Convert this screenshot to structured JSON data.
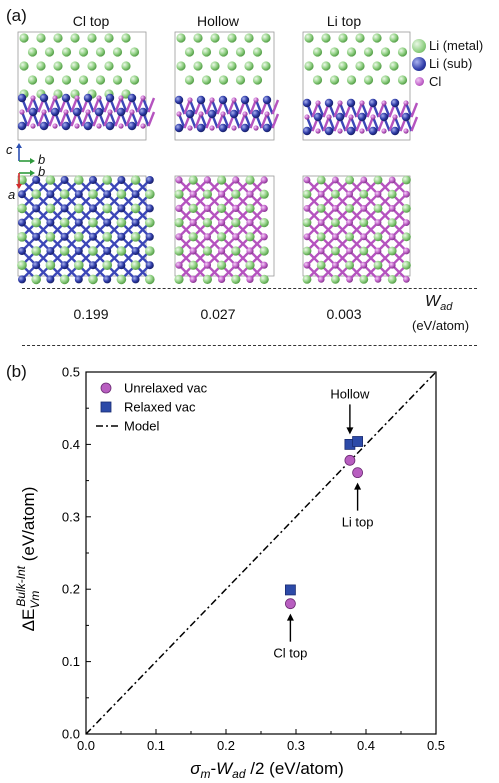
{
  "panel_a": {
    "label": "(a)",
    "columns": [
      {
        "title": "Cl top",
        "wad": "0.199"
      },
      {
        "title": "Hollow",
        "wad": "0.027"
      },
      {
        "title": "Li top",
        "wad": "0.003"
      }
    ],
    "legend": [
      {
        "label": "Li (metal)",
        "color": "#9ad28e"
      },
      {
        "label": "Li (sub)",
        "color": "#2f3ca8"
      },
      {
        "label": "Cl",
        "color": "#c061c8"
      }
    ],
    "axes_labels": {
      "c": "c",
      "b_top": "b",
      "b_bottom": "b",
      "a": "a"
    },
    "wad_symbol": "W",
    "wad_subscript": "ad",
    "wad_unit": "(eV/atom)"
  },
  "chart_data": {
    "type": "scatter",
    "panel_label": "(b)",
    "xlabel": "σm-Wad /2 (eV/atom)",
    "ylabel": "ΔE_Vm^Bulk-Int (eV/atom)",
    "xlim": [
      0.0,
      0.5
    ],
    "ylim": [
      0.0,
      0.5
    ],
    "x_ticks": [
      "0.0",
      "0.1",
      "0.2",
      "0.3",
      "0.4",
      "0.5"
    ],
    "y_ticks": [
      "0.0",
      "0.1",
      "0.2",
      "0.3",
      "0.4",
      "0.5"
    ],
    "grid": false,
    "legend_position": "top-left",
    "series": [
      {
        "name": "Unrelaxed vac",
        "marker": "circle",
        "color": "#b85ec0",
        "x": [
          0.292,
          0.377,
          0.388
        ],
        "y": [
          0.18,
          0.378,
          0.361
        ]
      },
      {
        "name": "Relaxed vac",
        "marker": "square",
        "color": "#2c4aa8",
        "x": [
          0.292,
          0.377,
          0.388
        ],
        "y": [
          0.199,
          0.4,
          0.404
        ]
      },
      {
        "name": "Model",
        "line": "dash-dot",
        "color": "#000000",
        "x": [
          0.0,
          0.5
        ],
        "y": [
          0.0,
          0.5
        ]
      }
    ],
    "annotations": [
      {
        "text": "Hollow",
        "x": 0.377,
        "y": 0.4,
        "direction": "above"
      },
      {
        "text": "Li top",
        "x": 0.388,
        "y": 0.361,
        "direction": "below"
      },
      {
        "text": "Cl top",
        "x": 0.292,
        "y": 0.18,
        "direction": "below"
      }
    ]
  }
}
